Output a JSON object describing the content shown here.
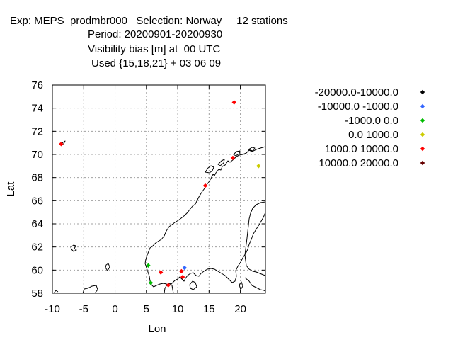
{
  "header": {
    "line1": "Exp: MEPS_prodmbr000   Selection: Norway     12 stations",
    "line2": "Period: 20200901-20200930",
    "line3": "Visibility bias [m] at  00 UTC",
    "line4": "Used {15,18,21} + 03 06 09"
  },
  "chart_data": {
    "type": "scatter",
    "title": "",
    "xlabel": "Lon",
    "ylabel": "Lat",
    "xlim": [
      -10,
      24
    ],
    "ylim": [
      58,
      76
    ],
    "xticks": [
      -10,
      -5,
      0,
      5,
      10,
      15,
      20
    ],
    "yticks": [
      58,
      60,
      62,
      64,
      66,
      68,
      70,
      72,
      74,
      76
    ],
    "grid": true,
    "legend_position": "top-right",
    "series": [
      {
        "name": "-20000.0-10000.0",
        "color": "#000000",
        "points": []
      },
      {
        "name": "-10000.0 -1000.0",
        "color": "#3366ff",
        "points": [
          {
            "x": 11.1,
            "y": 60.2
          }
        ]
      },
      {
        "name": "-1000.0 0.0",
        "color": "#00bb00",
        "points": [
          {
            "x": 5.3,
            "y": 60.4
          },
          {
            "x": 5.7,
            "y": 58.9
          }
        ]
      },
      {
        "name": "0.0 1000.0",
        "color": "#cccc00",
        "points": [
          {
            "x": 22.9,
            "y": 69.0
          }
        ]
      },
      {
        "name": "1000.0 10000.0",
        "color": "#ff0000",
        "points": [
          {
            "x": -8.6,
            "y": 70.9
          },
          {
            "x": 19.0,
            "y": 74.5
          },
          {
            "x": 18.8,
            "y": 69.7
          },
          {
            "x": 14.4,
            "y": 67.3
          },
          {
            "x": 7.3,
            "y": 59.8
          },
          {
            "x": 10.6,
            "y": 59.9
          },
          {
            "x": 10.8,
            "y": 59.4
          },
          {
            "x": 8.5,
            "y": 58.7
          }
        ]
      },
      {
        "name": "10000.0 20000.0",
        "color": "#660000",
        "points": []
      }
    ]
  }
}
